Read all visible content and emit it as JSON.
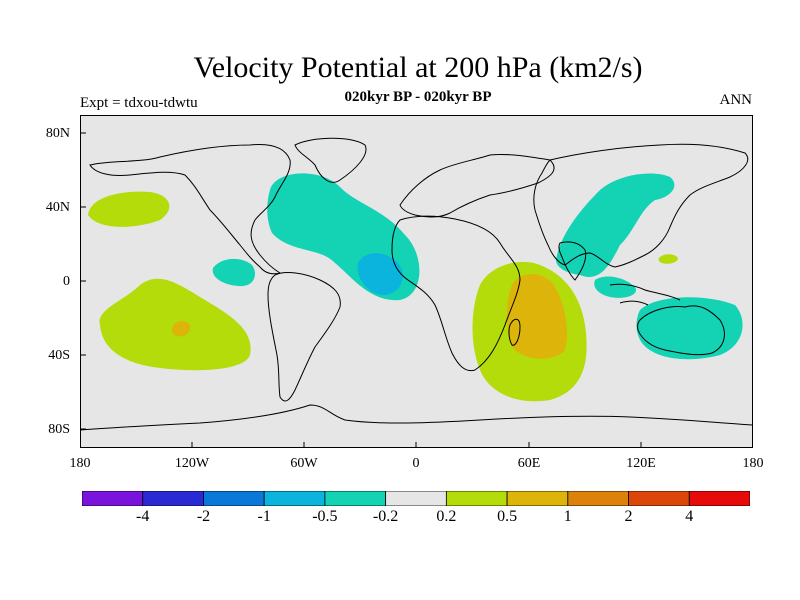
{
  "title": "Velocity Potential at 200 hPa (km2/s)",
  "subtitle": "020kyr BP - 020kyr BP",
  "left_label": "Expt = tdxou-tdwtu",
  "right_label": "ANN",
  "map": {
    "lon_range": [
      -180,
      180
    ],
    "lat_range": [
      -90,
      90
    ],
    "y_ticks": [
      "80N",
      "40N",
      "0",
      "40S",
      "80S"
    ],
    "x_ticks": [
      "180",
      "120W",
      "60W",
      "0",
      "60E",
      "120E",
      "180"
    ],
    "background_color": "#e6e6e6"
  },
  "colorbar": {
    "colors": [
      "#7a14dc",
      "#2a2ad4",
      "#0a78d8",
      "#0ab4dc",
      "#14d2b4",
      "#e6e6e6",
      "#b4dc0a",
      "#dcb40a",
      "#dc820a",
      "#dc460a",
      "#e60a0a"
    ],
    "labels": [
      "-4",
      "-2",
      "-1",
      "-0.5",
      "-0.2",
      "0.2",
      "0.5",
      "1",
      "2",
      "4"
    ]
  }
}
